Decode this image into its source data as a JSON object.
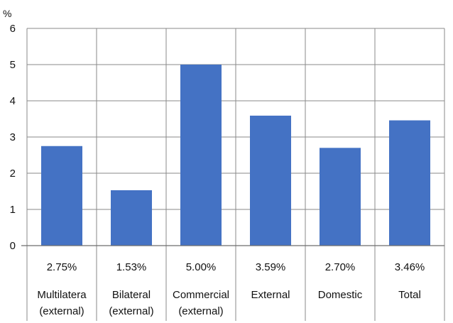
{
  "chart_data": {
    "type": "bar",
    "unit_label": "%",
    "ylim": [
      0,
      6
    ],
    "yticks": [
      0,
      1,
      2,
      3,
      4,
      5,
      6
    ],
    "grid": true,
    "bar_color": "#4472C4",
    "categories": [
      "Multilatera\n(external)",
      "Bilateral\n(external)",
      "Commercial\n(external)",
      "External",
      "Domestic",
      "Total"
    ],
    "values": [
      2.75,
      1.53,
      5.0,
      3.59,
      2.7,
      3.46
    ],
    "value_labels": [
      "2.75%",
      "1.53%",
      "5.00%",
      "3.59%",
      "2.70%",
      "3.46%"
    ]
  }
}
